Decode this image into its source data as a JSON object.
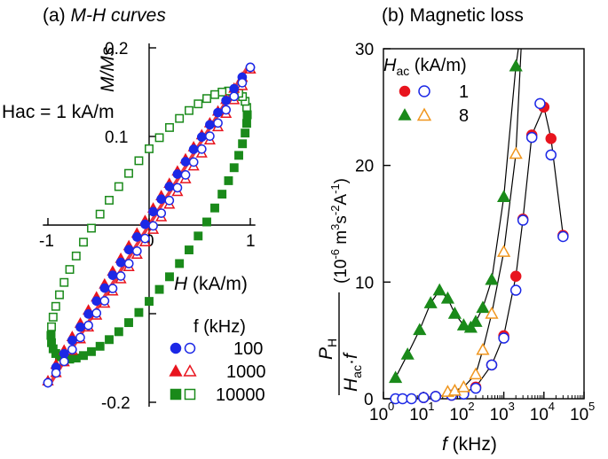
{
  "chart_data": [
    {
      "id": "mh",
      "type": "scatter",
      "title_prefix": "(a)",
      "title": "M-H curves",
      "xlabel": "H (kA/m)",
      "ylabel": "M/Ms",
      "xlim": [
        -1.05,
        1.05
      ],
      "ylim": [
        -0.2,
        0.2
      ],
      "xticks": [
        -1,
        0,
        1
      ],
      "yticks": [
        0.1,
        0.2
      ],
      "ytick_labels": [
        "0.1",
        "0.2"
      ],
      "ytick_neg_labels": [
        "-0.2"
      ],
      "annotation": "Hac = 1 kA/m",
      "legend_title": "f (kHz)",
      "legend": [
        "100",
        "1000",
        "10000"
      ],
      "colors": {
        "blue": "#1c28e6",
        "red": "#e8141e",
        "green": "#1a8a1a"
      },
      "series": [
        {
          "name": "100",
          "color": "blue",
          "marker": "circle",
          "Hmax": 1.0,
          "Mmax": 0.178,
          "remanence": 0.008,
          "points": 25
        },
        {
          "name": "1000",
          "color": "red",
          "marker": "triangle",
          "Hmax": 1.0,
          "Mmax": 0.176,
          "remanence": 0.012,
          "points": 25
        },
        {
          "name": "10000",
          "color": "green",
          "marker": "square",
          "Hmax": 0.97,
          "Mmax": 0.131,
          "remanence": 0.082,
          "coercivity": 0.62,
          "points": 30
        }
      ]
    },
    {
      "id": "loss",
      "type": "line",
      "title_prefix": "(b)",
      "title": "Magnetic loss",
      "xlabel": "f (kHz)",
      "ylabel": "PH / (Hac·f)",
      "ylabel_units": "(10^-6 m^3 s^-2 A^-1)",
      "xscale": "log",
      "xlim": [
        1,
        100000
      ],
      "ylim": [
        0,
        30
      ],
      "xtick_exponents": [
        "0",
        "1",
        "2",
        "3",
        "4",
        "5"
      ],
      "yticks": [
        "0",
        "10",
        "20",
        "30"
      ],
      "legend_title": "Hac (kA/m)",
      "legend": [
        "1",
        "8"
      ],
      "series": [
        {
          "name": "1 kA/m filled",
          "color": "red",
          "marker": "circle",
          "filled": true,
          "x": [
            10,
            20,
            50,
            100,
            200,
            500,
            1000,
            2000,
            3000,
            5000,
            10000,
            15000,
            30000
          ],
          "y": [
            0.1,
            0.2,
            0.3,
            0.5,
            1.0,
            2.9,
            5.4,
            10.5,
            15.4,
            22.6,
            25.0,
            22.3,
            14.0
          ]
        },
        {
          "name": "1 kA/m open",
          "color": "blue",
          "marker": "circle",
          "filled": false,
          "x": [
            2,
            3,
            5,
            10,
            20,
            50,
            100,
            200,
            500,
            1000,
            2000,
            3000,
            5000,
            8000,
            15000,
            30000
          ],
          "y": [
            0.0,
            0.0,
            0.0,
            0.1,
            0.2,
            0.3,
            0.4,
            0.9,
            2.9,
            5.2,
            9.3,
            15.3,
            22.4,
            25.3,
            20.9,
            13.9
          ]
        },
        {
          "name": "8 kA/m filled",
          "color": "green",
          "marker": "triangle",
          "filled": true,
          "x": [
            2,
            4,
            8,
            15,
            25,
            40,
            60,
            100,
            150,
            200,
            300,
            500,
            1000,
            2000
          ],
          "y": [
            1.8,
            3.8,
            5.9,
            8.2,
            9.3,
            8.6,
            7.3,
            6.3,
            6.1,
            6.6,
            7.8,
            10.2,
            17.3,
            28.5
          ]
        },
        {
          "name": "8 kA/m open",
          "color": "orange",
          "marker": "triangle",
          "filled": false,
          "x": [
            40,
            60,
            100,
            200,
            300,
            500,
            1000,
            2000
          ],
          "y": [
            0.6,
            0.7,
            1.0,
            2.1,
            4.2,
            7.3,
            12.6,
            21.0
          ]
        }
      ],
      "colors": {
        "blue": "#1c28e6",
        "red": "#e8141e",
        "green": "#1a8a1a",
        "orange": "#f0961e"
      }
    }
  ]
}
